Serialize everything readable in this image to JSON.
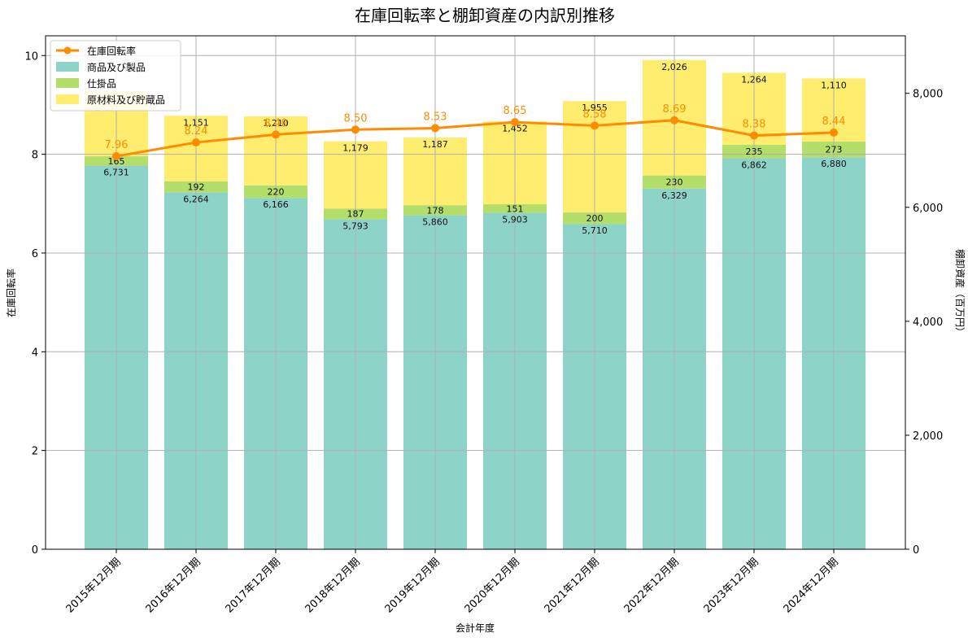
{
  "chart_data": {
    "type": "bar",
    "title": "在庫回転率と棚卸資産の内訳別推移",
    "xlabel": "会計年度",
    "ylabel_left": "在庫回転率",
    "ylabel_right": "棚卸資産（百万円）",
    "ylim_left": [
      0,
      10.4
    ],
    "ylim_right": [
      0,
      9010
    ],
    "yticks_left": [
      "0",
      "2",
      "4",
      "6",
      "8",
      "10"
    ],
    "yticks_right": [
      "0",
      "2,000",
      "4,000",
      "6,000",
      "8,000"
    ],
    "grid": true,
    "legend_position": "top-left",
    "categories": [
      "2015年12月期",
      "2016年12月期",
      "2017年12月期",
      "2018年12月期",
      "2019年12月期",
      "2020年12月期",
      "2021年12月期",
      "2022年12月期",
      "2023年12月期",
      "2024年12月期"
    ],
    "series": [
      {
        "name": "商品及び製品",
        "axis": "right",
        "kind": "stacked-bar",
        "color": "#8dd3c7",
        "values": [
          6731,
          6264,
          6166,
          5793,
          5860,
          5903,
          5710,
          6329,
          6862,
          6880
        ],
        "labels": [
          "6,731",
          "6,264",
          "6,166",
          "5,793",
          "5,860",
          "5,903",
          "5,710",
          "6,329",
          "6,862",
          "6,880"
        ]
      },
      {
        "name": "仕掛品",
        "axis": "right",
        "kind": "stacked-bar",
        "color": "#b3de69",
        "values": [
          165,
          192,
          220,
          187,
          178,
          151,
          200,
          230,
          235,
          273
        ],
        "labels": [
          "165",
          "192",
          "220",
          "187",
          "178",
          "151",
          "200",
          "230",
          "235",
          "273"
        ]
      },
      {
        "name": "原材料及び貯蔵品",
        "axis": "right",
        "kind": "stacked-bar",
        "color": "#ffed6f",
        "values": [
          1150,
          1151,
          1210,
          1179,
          1187,
          1452,
          1955,
          2026,
          1264,
          1110
        ],
        "labels": [
          "",
          "1,151",
          "1,210",
          "1,179",
          "1,187",
          "1,452",
          "1,955",
          "2,026",
          "1,264",
          "1,110"
        ]
      },
      {
        "name": "在庫回転率",
        "axis": "left",
        "kind": "line",
        "color": "#ff8c00",
        "values": [
          7.96,
          8.24,
          8.4,
          8.5,
          8.53,
          8.65,
          8.58,
          8.69,
          8.38,
          8.44
        ],
        "labels": [
          "7.96",
          "8.24",
          "8.40",
          "8.50",
          "8.53",
          "8.65",
          "8.58",
          "8.69",
          "8.38",
          "8.44"
        ]
      }
    ]
  }
}
